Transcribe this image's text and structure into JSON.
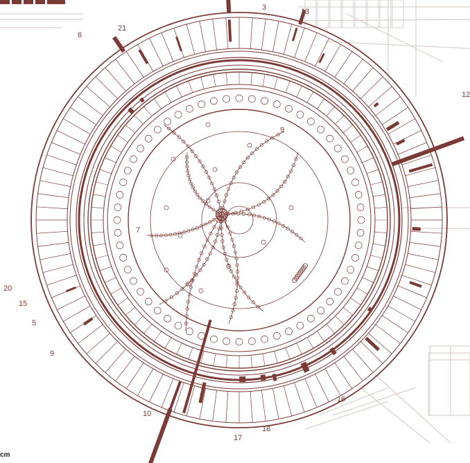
{
  "colors": {
    "ink": "#7b3a36",
    "faint": "#d9cfcc",
    "background": "#ffffff"
  },
  "track_labels": [
    "3",
    "13",
    "6",
    "21",
    "12",
    "9",
    "7",
    "20",
    "15",
    "5",
    "9",
    "10",
    "16",
    "17",
    "18"
  ],
  "scale_unit": "cm",
  "background_hint": "faint detector engineering drawing"
}
